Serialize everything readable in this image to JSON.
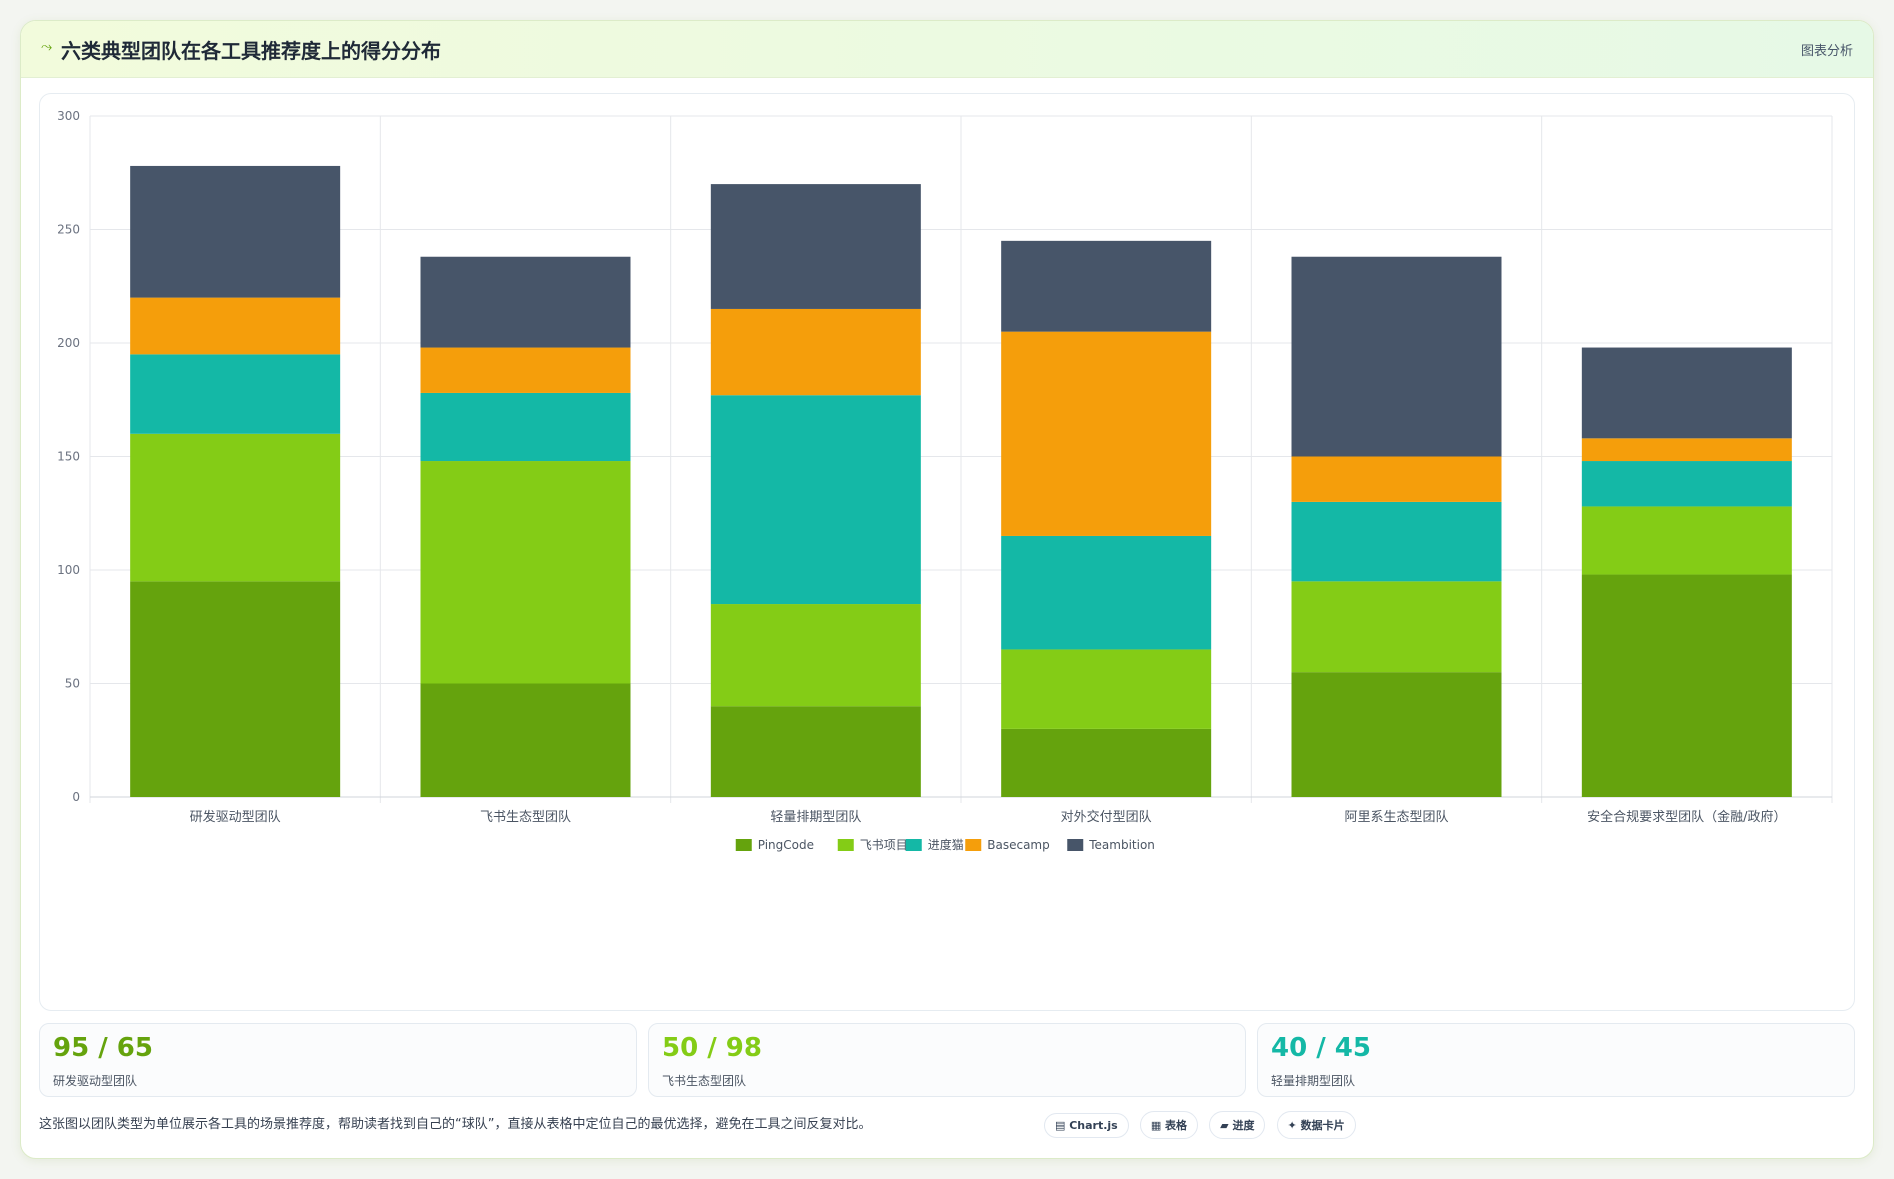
{
  "header": {
    "icon": "spark-icon",
    "title": "六类典型团队在各工具推荐度上的得分分布",
    "tag": "图表分析"
  },
  "chart_data": {
    "type": "bar",
    "stacked": true,
    "categories": [
      "研发驱动型团队",
      "飞书生态型团队",
      "轻量排期型团队",
      "对外交付型团队",
      "阿里系生态型团队",
      "安全合规要求型团队（金融/政府）"
    ],
    "series": [
      {
        "name": "PingCode",
        "color": "#65a30d",
        "values": [
          95,
          50,
          40,
          30,
          55,
          98
        ]
      },
      {
        "name": "飞书项目",
        "color": "#84cc16",
        "values": [
          65,
          98,
          45,
          35,
          40,
          30
        ]
      },
      {
        "name": "进度猫",
        "color": "#14b8a6",
        "values": [
          35,
          30,
          92,
          50,
          35,
          20
        ]
      },
      {
        "name": "Basecamp",
        "color": "#f59e0b",
        "values": [
          25,
          20,
          38,
          90,
          20,
          10
        ]
      },
      {
        "name": "Teambition",
        "color": "#475569",
        "values": [
          58,
          40,
          55,
          40,
          88,
          40
        ]
      }
    ],
    "ylim": [
      0,
      300
    ],
    "yticks": [
      0,
      50,
      100,
      150,
      200,
      250,
      300
    ],
    "grid": true,
    "legend": "bottom"
  },
  "stats": [
    {
      "value": "95 / 65",
      "label": "研发驱动型团队",
      "color": "#65a30d"
    },
    {
      "value": "50 / 98",
      "label": "飞书生态型团队",
      "color": "#84cc16"
    },
    {
      "value": "40 / 45",
      "label": "轻量排期型团队",
      "color": "#14b8a6"
    }
  ],
  "footnote": "这张图以团队类型为单位展示各工具的场景推荐度，帮助读者找到自己的“球队”，直接从表格中定位自己的最优选择，避免在工具之间反复对比。",
  "badges": [
    "▤ Chart.js",
    "▦ 表格",
    "▰ 进度",
    "✦ 数据卡片"
  ]
}
